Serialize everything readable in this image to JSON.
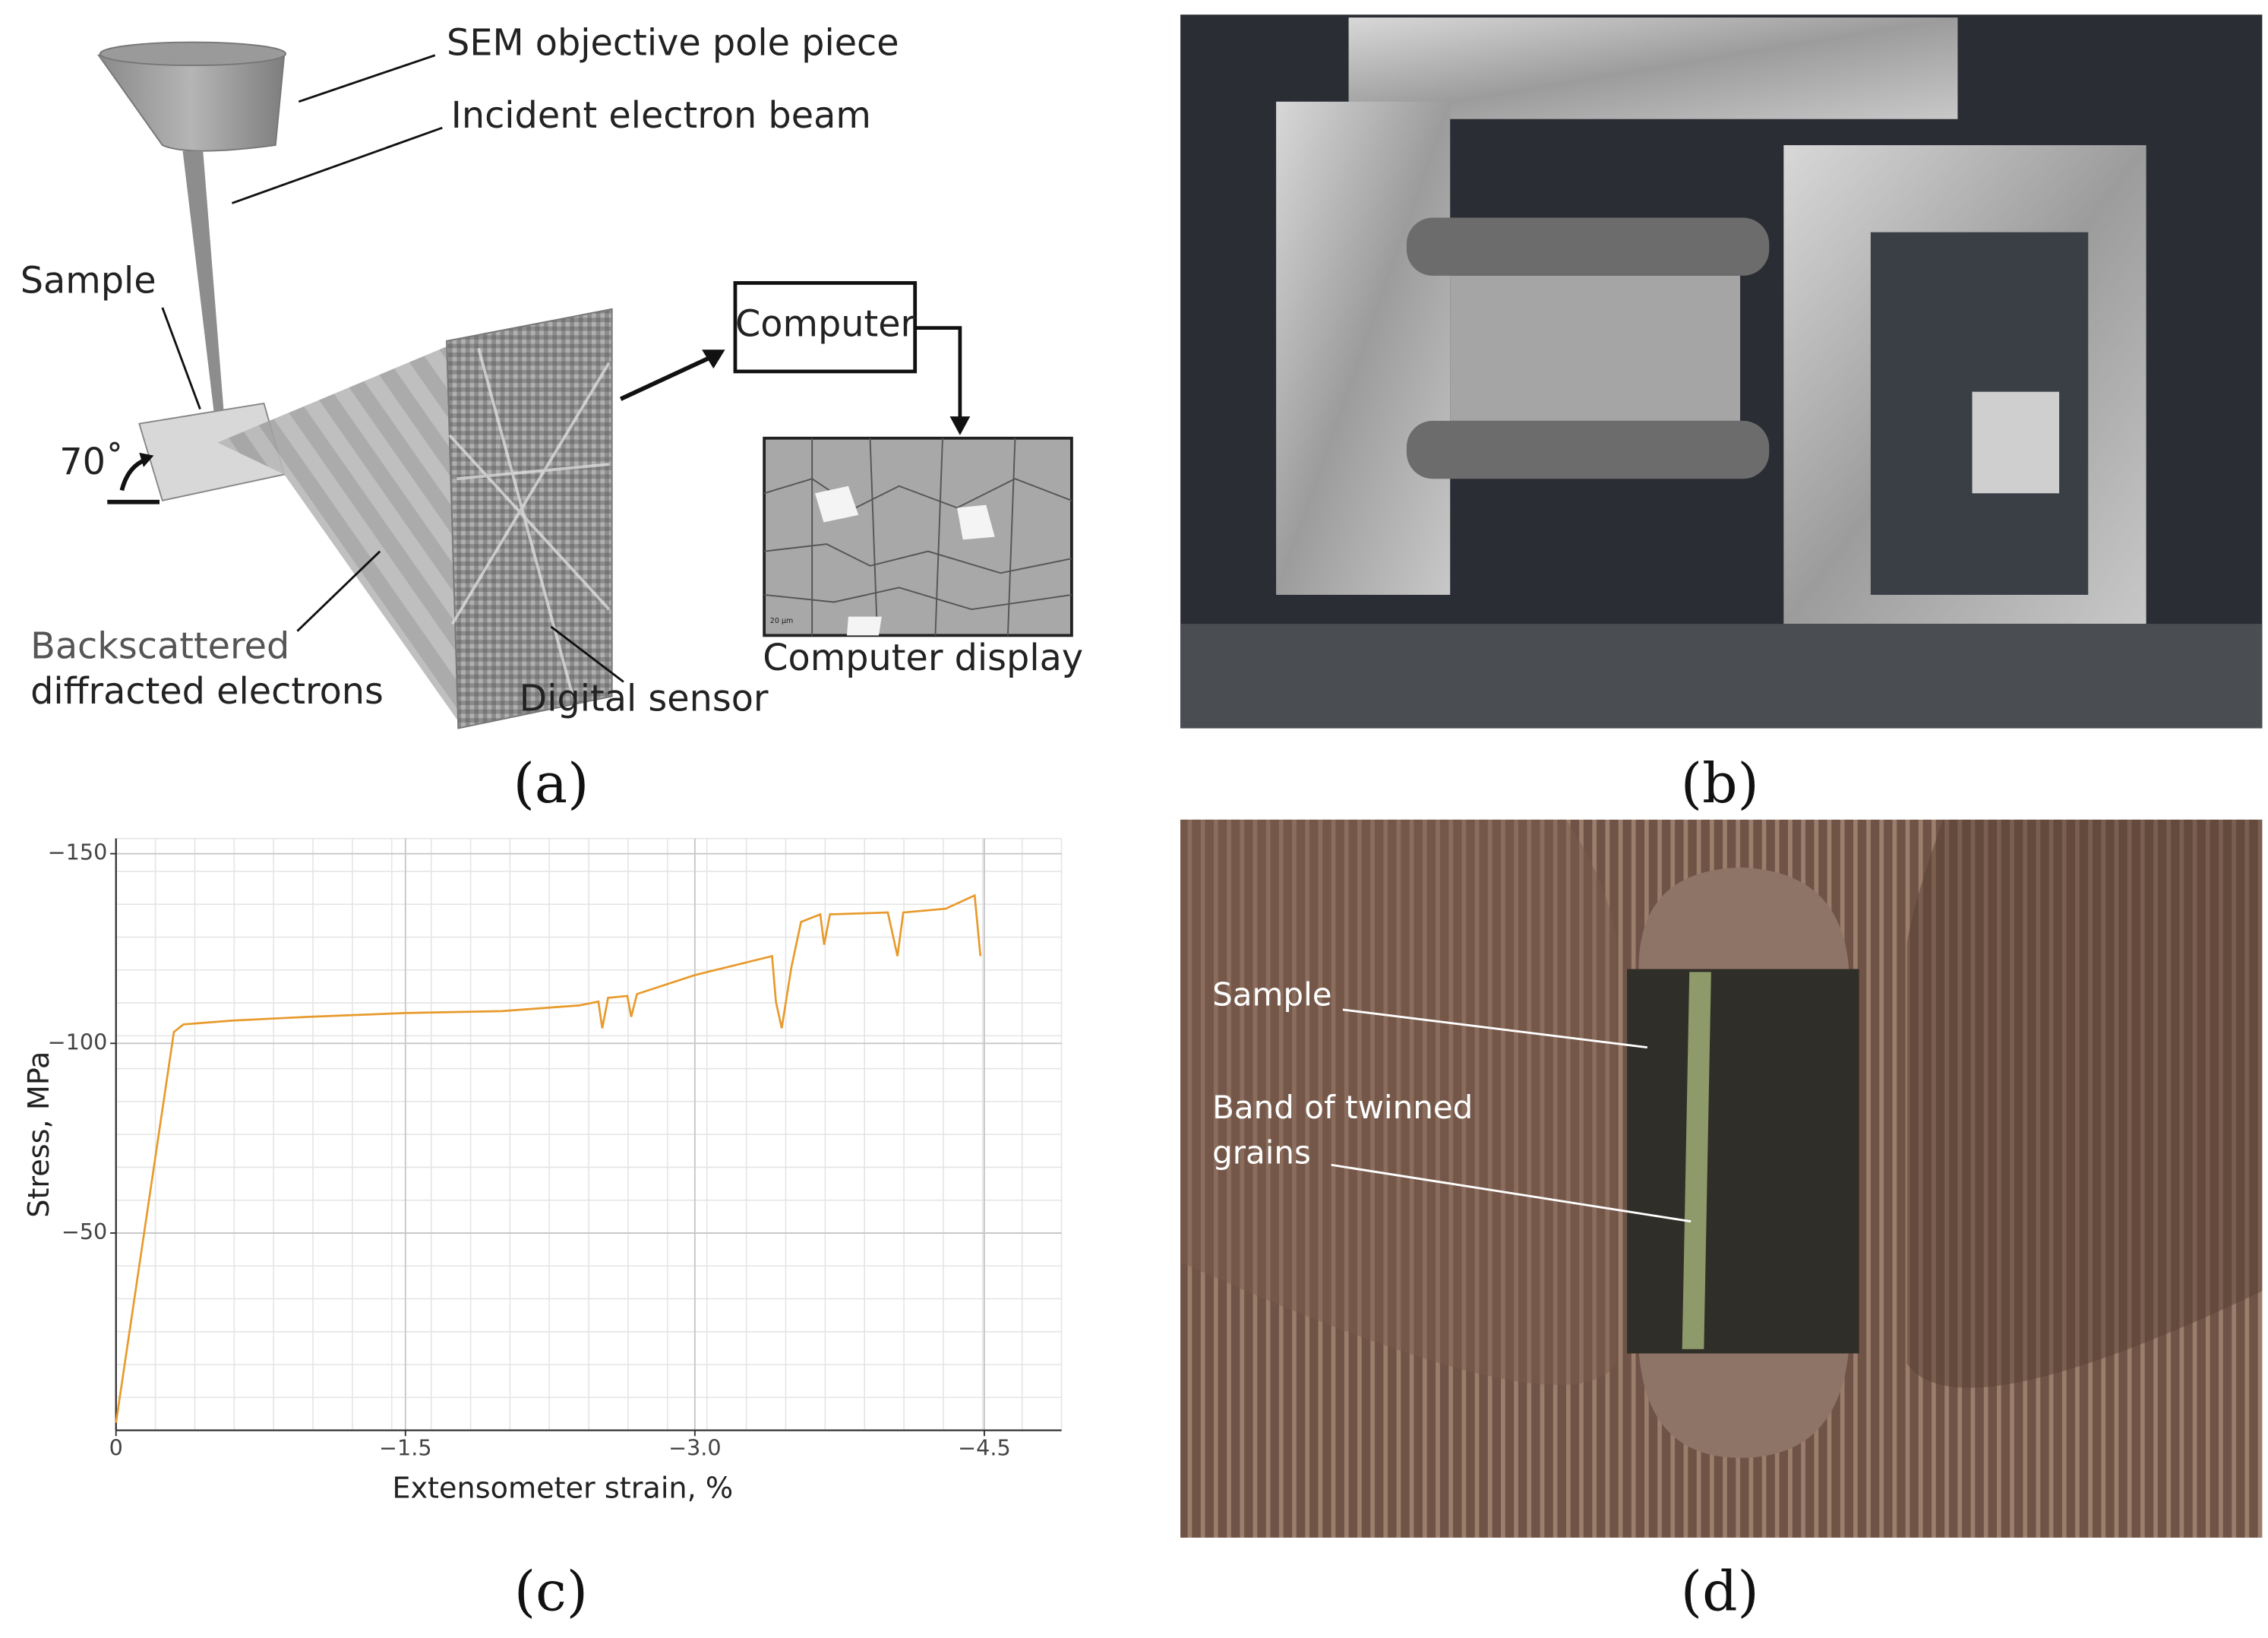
{
  "panel_a": {
    "labels": {
      "pole_piece": "SEM objective pole piece",
      "beam": "Incident electron beam",
      "sample": "Sample",
      "angle": "70˚",
      "backscattered": [
        "Backscattered",
        "diffracted electrons"
      ],
      "sensor": "Digital sensor",
      "computer": "Computer",
      "display": "Computer display"
    },
    "display_scale": "20 µm"
  },
  "panel_d": {
    "labels": {
      "sample": "Sample",
      "band": [
        "Band of twinned",
        "grains"
      ]
    }
  },
  "captions": [
    "(a)",
    "(b)",
    "(c)",
    "(d)"
  ],
  "chart_data": {
    "type": "line",
    "x_label": "Extensometer strain, %",
    "y_label": "Stress, MPa",
    "xlim": [
      0,
      -4.9
    ],
    "ylim": [
      2,
      -154
    ],
    "xticks": [
      0,
      {
        "value": -1.5,
        "label": "−1.5"
      },
      {
        "value": -3.0,
        "label": "−3.0"
      },
      {
        "value": -4.5,
        "label": "−4.5"
      }
    ],
    "yticks": [
      {
        "value": -50,
        "label": "−50"
      },
      {
        "value": -100,
        "label": "−100"
      },
      {
        "value": -150,
        "label": "−150"
      }
    ],
    "grid": true,
    "minor_grid": true,
    "series": [
      {
        "color": "#e89a2c",
        "x": [
          0,
          -0.3,
          -0.35,
          -0.6,
          -1.0,
          -1.5,
          -2.0,
          -2.4,
          -2.5,
          -2.52,
          -2.55,
          -2.65,
          -2.67,
          -2.7,
          -3.0,
          -3.4,
          -3.42,
          -3.45,
          -3.5,
          -3.55,
          -3.6,
          -3.65,
          -3.67,
          -3.7,
          -4.0,
          -4.05,
          -4.08,
          -4.3,
          -4.45,
          -4.48
        ],
        "values": [
          0,
          -103,
          -105,
          -106,
          -107,
          -108,
          -108.5,
          -110,
          -111,
          -104,
          -112,
          -112.5,
          -107,
          -113,
          -118,
          -123,
          -111,
          -104,
          -120,
          -132,
          -133,
          -134,
          -126,
          -134,
          -134.5,
          -123,
          -134.5,
          -135.5,
          -139,
          -123
        ]
      }
    ]
  }
}
